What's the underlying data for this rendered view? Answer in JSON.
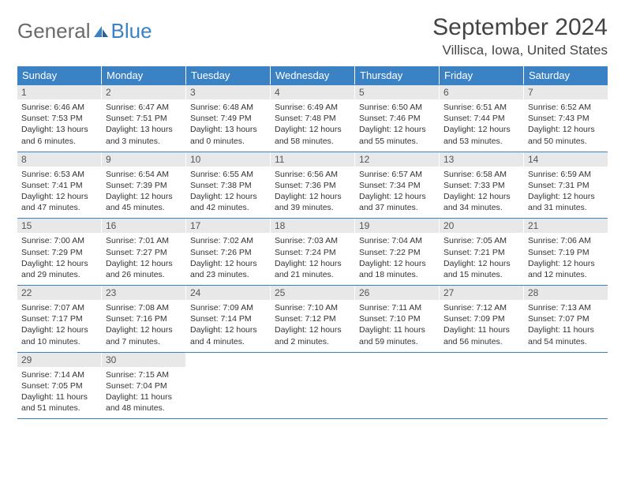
{
  "logo": {
    "general": "General",
    "blue": "Blue"
  },
  "title": "September 2024",
  "location": "Villisca, Iowa, United States",
  "colors": {
    "header_bg": "#3b82c4",
    "header_text": "#ffffff",
    "daynum_bg": "#e8e8e8",
    "daynum_text": "#555555",
    "body_text": "#333333",
    "rule": "#3b82c4",
    "logo_gray": "#6b6b6b",
    "logo_blue": "#3b82c4"
  },
  "weekdays": [
    "Sunday",
    "Monday",
    "Tuesday",
    "Wednesday",
    "Thursday",
    "Friday",
    "Saturday"
  ],
  "weeks": [
    [
      {
        "n": "1",
        "sr": "6:46 AM",
        "ss": "7:53 PM",
        "dl": "13 hours and 6 minutes."
      },
      {
        "n": "2",
        "sr": "6:47 AM",
        "ss": "7:51 PM",
        "dl": "13 hours and 3 minutes."
      },
      {
        "n": "3",
        "sr": "6:48 AM",
        "ss": "7:49 PM",
        "dl": "13 hours and 0 minutes."
      },
      {
        "n": "4",
        "sr": "6:49 AM",
        "ss": "7:48 PM",
        "dl": "12 hours and 58 minutes."
      },
      {
        "n": "5",
        "sr": "6:50 AM",
        "ss": "7:46 PM",
        "dl": "12 hours and 55 minutes."
      },
      {
        "n": "6",
        "sr": "6:51 AM",
        "ss": "7:44 PM",
        "dl": "12 hours and 53 minutes."
      },
      {
        "n": "7",
        "sr": "6:52 AM",
        "ss": "7:43 PM",
        "dl": "12 hours and 50 minutes."
      }
    ],
    [
      {
        "n": "8",
        "sr": "6:53 AM",
        "ss": "7:41 PM",
        "dl": "12 hours and 47 minutes."
      },
      {
        "n": "9",
        "sr": "6:54 AM",
        "ss": "7:39 PM",
        "dl": "12 hours and 45 minutes."
      },
      {
        "n": "10",
        "sr": "6:55 AM",
        "ss": "7:38 PM",
        "dl": "12 hours and 42 minutes."
      },
      {
        "n": "11",
        "sr": "6:56 AM",
        "ss": "7:36 PM",
        "dl": "12 hours and 39 minutes."
      },
      {
        "n": "12",
        "sr": "6:57 AM",
        "ss": "7:34 PM",
        "dl": "12 hours and 37 minutes."
      },
      {
        "n": "13",
        "sr": "6:58 AM",
        "ss": "7:33 PM",
        "dl": "12 hours and 34 minutes."
      },
      {
        "n": "14",
        "sr": "6:59 AM",
        "ss": "7:31 PM",
        "dl": "12 hours and 31 minutes."
      }
    ],
    [
      {
        "n": "15",
        "sr": "7:00 AM",
        "ss": "7:29 PM",
        "dl": "12 hours and 29 minutes."
      },
      {
        "n": "16",
        "sr": "7:01 AM",
        "ss": "7:27 PM",
        "dl": "12 hours and 26 minutes."
      },
      {
        "n": "17",
        "sr": "7:02 AM",
        "ss": "7:26 PM",
        "dl": "12 hours and 23 minutes."
      },
      {
        "n": "18",
        "sr": "7:03 AM",
        "ss": "7:24 PM",
        "dl": "12 hours and 21 minutes."
      },
      {
        "n": "19",
        "sr": "7:04 AM",
        "ss": "7:22 PM",
        "dl": "12 hours and 18 minutes."
      },
      {
        "n": "20",
        "sr": "7:05 AM",
        "ss": "7:21 PM",
        "dl": "12 hours and 15 minutes."
      },
      {
        "n": "21",
        "sr": "7:06 AM",
        "ss": "7:19 PM",
        "dl": "12 hours and 12 minutes."
      }
    ],
    [
      {
        "n": "22",
        "sr": "7:07 AM",
        "ss": "7:17 PM",
        "dl": "12 hours and 10 minutes."
      },
      {
        "n": "23",
        "sr": "7:08 AM",
        "ss": "7:16 PM",
        "dl": "12 hours and 7 minutes."
      },
      {
        "n": "24",
        "sr": "7:09 AM",
        "ss": "7:14 PM",
        "dl": "12 hours and 4 minutes."
      },
      {
        "n": "25",
        "sr": "7:10 AM",
        "ss": "7:12 PM",
        "dl": "12 hours and 2 minutes."
      },
      {
        "n": "26",
        "sr": "7:11 AM",
        "ss": "7:10 PM",
        "dl": "11 hours and 59 minutes."
      },
      {
        "n": "27",
        "sr": "7:12 AM",
        "ss": "7:09 PM",
        "dl": "11 hours and 56 minutes."
      },
      {
        "n": "28",
        "sr": "7:13 AM",
        "ss": "7:07 PM",
        "dl": "11 hours and 54 minutes."
      }
    ],
    [
      {
        "n": "29",
        "sr": "7:14 AM",
        "ss": "7:05 PM",
        "dl": "11 hours and 51 minutes."
      },
      {
        "n": "30",
        "sr": "7:15 AM",
        "ss": "7:04 PM",
        "dl": "11 hours and 48 minutes."
      },
      null,
      null,
      null,
      null,
      null
    ]
  ]
}
